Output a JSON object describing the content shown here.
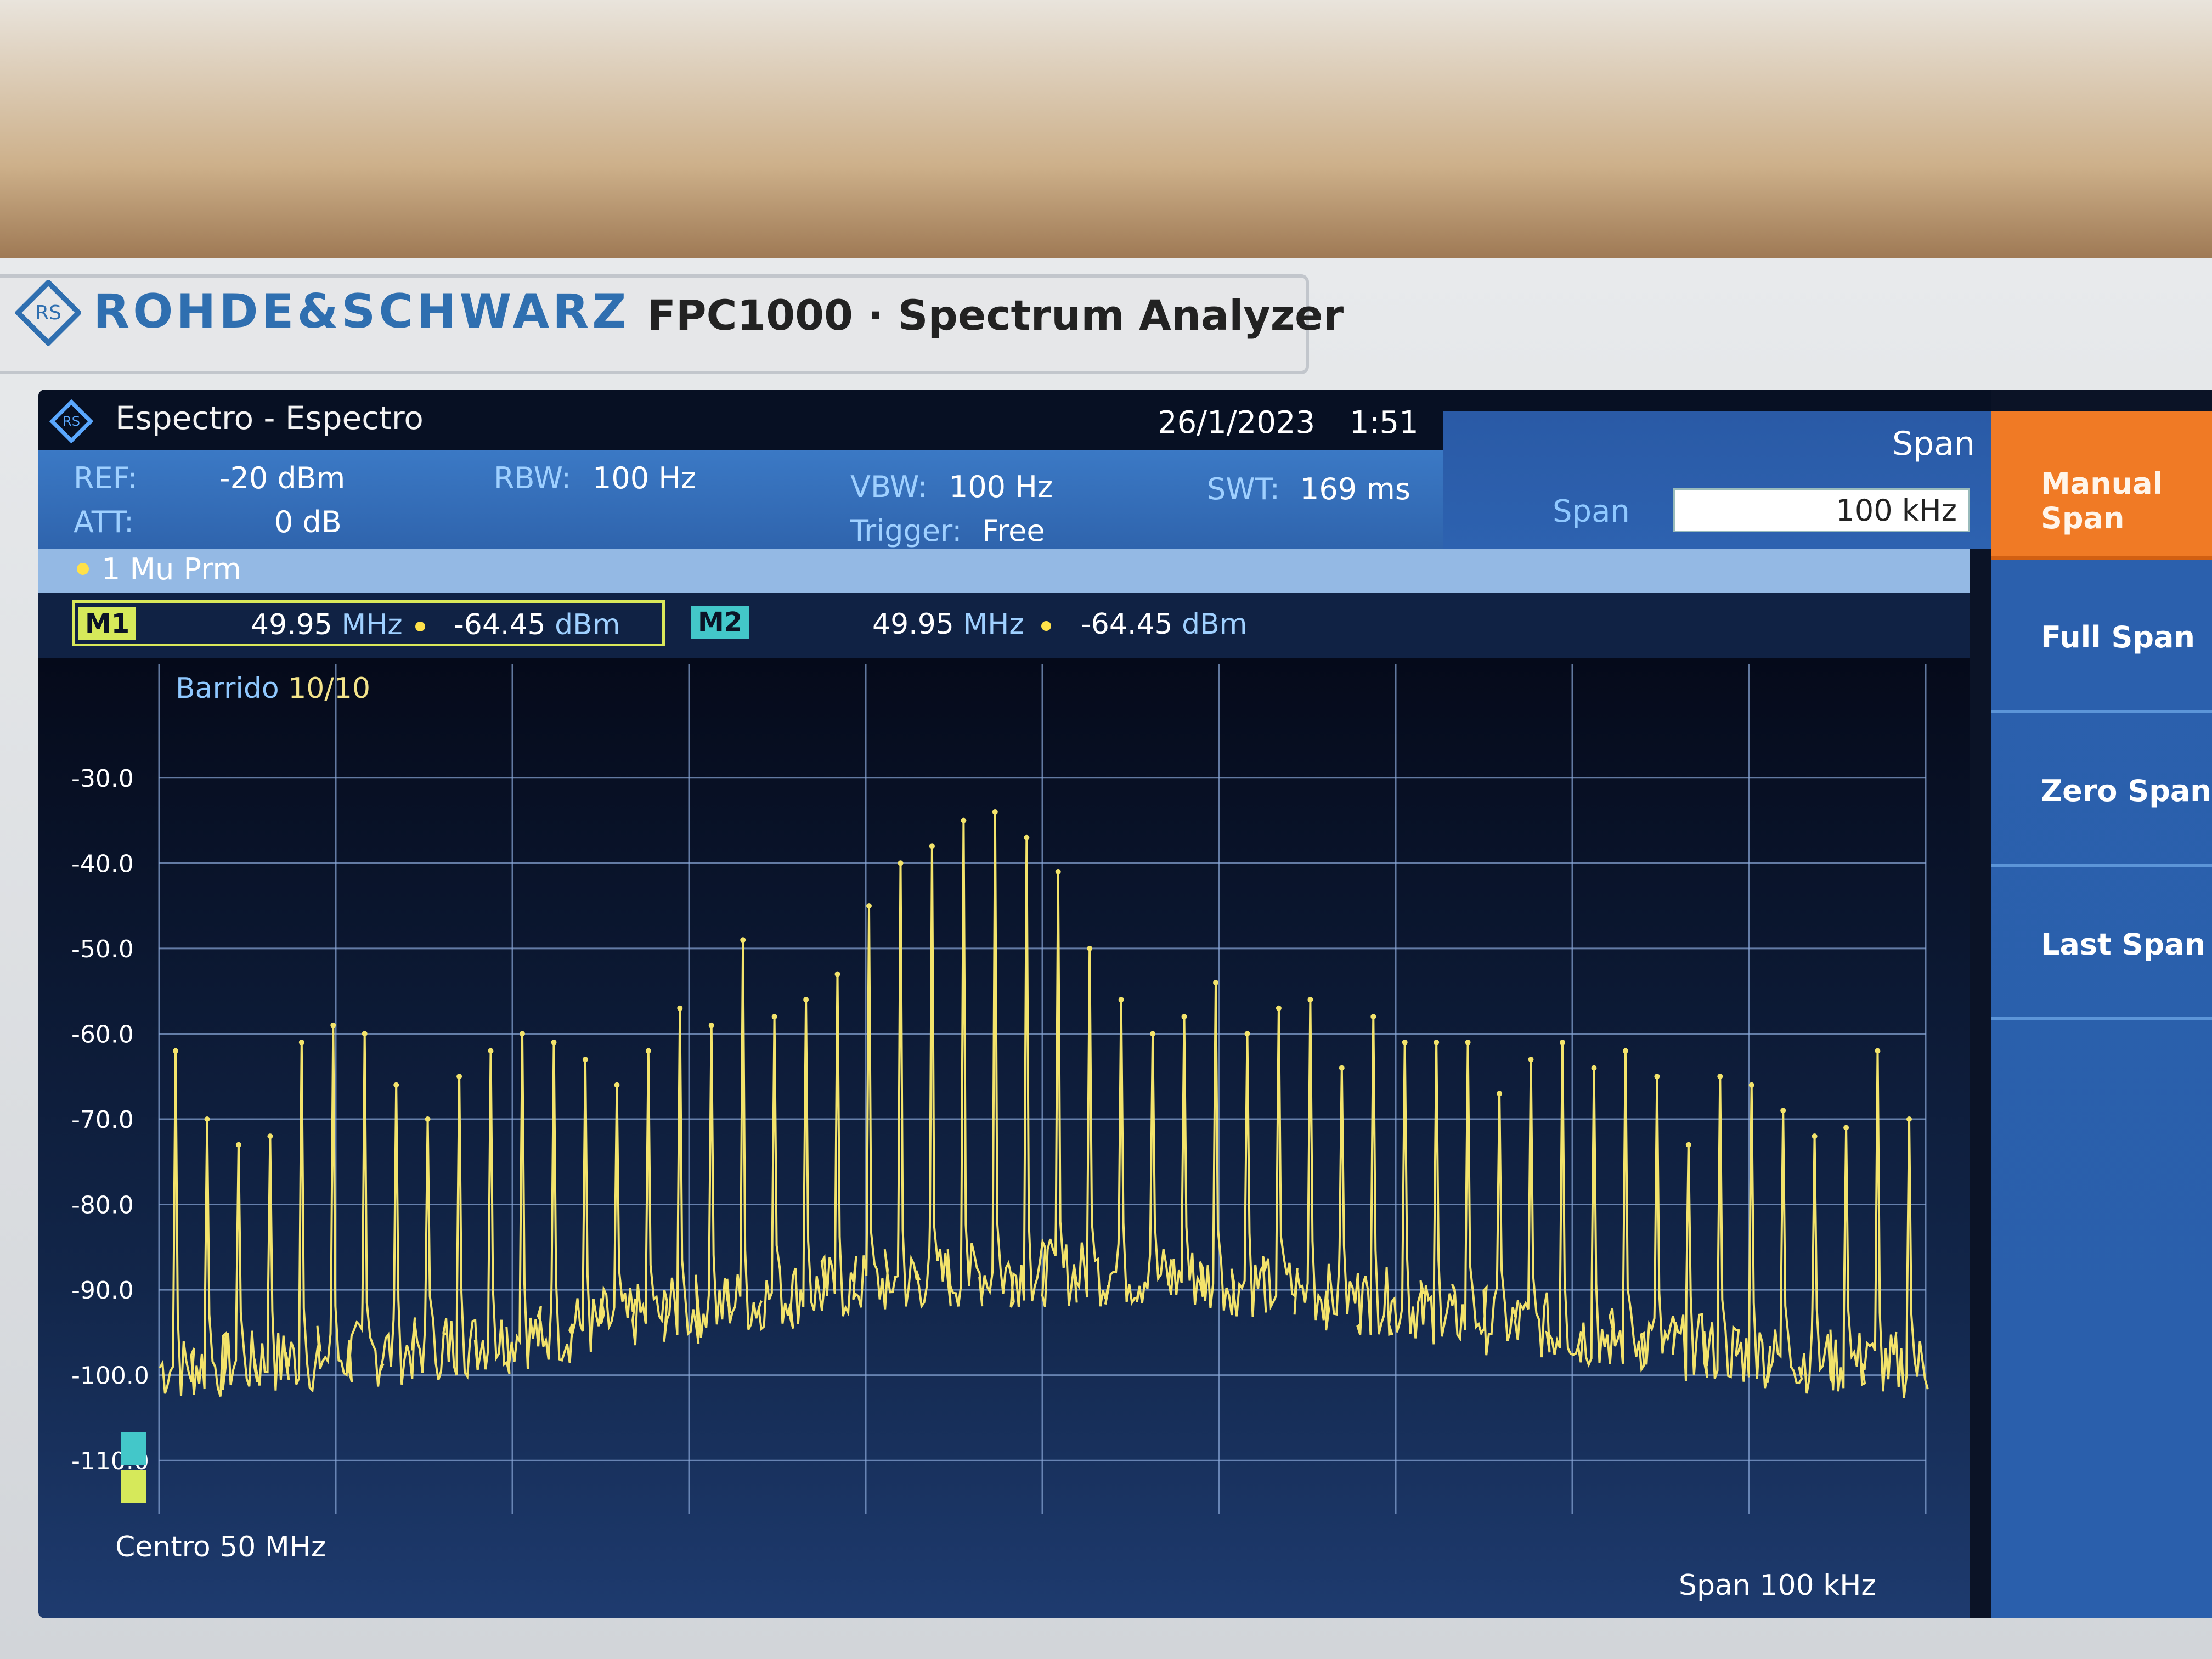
{
  "device": {
    "brand": "ROHDE&SCHWARZ",
    "model": "FPC1000 · Spectrum Analyzer"
  },
  "title_bar": {
    "app_title": "Espectro - Espectro",
    "date": "26/1/2023",
    "time": "1:51"
  },
  "params": {
    "ref_label": "REF:",
    "ref_value": "-20 dBm",
    "att_label": "ATT:",
    "att_value": "0 dB",
    "rbw_label": "RBW:",
    "rbw_value": "100 Hz",
    "vbw_label": "VBW:",
    "vbw_value": "100 Hz",
    "trigger_label": "Trigger:",
    "trigger_value": "Free",
    "swt_label": "SWT:",
    "swt_value": "169 ms"
  },
  "span_panel": {
    "title": "Span",
    "field_label": "Span",
    "field_value": "100 kHz"
  },
  "trace": {
    "label": "1 Mu  Prm"
  },
  "markers": {
    "m1": {
      "tag": "M1",
      "freq": "49.95",
      "freq_unit": "MHz",
      "level": "-64.45",
      "level_unit": "dBm"
    },
    "m2": {
      "tag": "M2",
      "freq": "49.95",
      "freq_unit": "MHz",
      "level": "-64.45",
      "level_unit": "dBm"
    }
  },
  "plot": {
    "sweep_label": "Barrido",
    "sweep_count": "10/10",
    "center": "Centro 50 MHz",
    "span": "Span 100 kHz",
    "trace_color": "#f3e36b"
  },
  "softkeys": [
    {
      "label": "Manual Span",
      "active": true
    },
    {
      "label": "Full Span",
      "active": false
    },
    {
      "label": "Zero Span",
      "active": false
    },
    {
      "label": "Last Span",
      "active": false
    }
  ],
  "chart_data": {
    "type": "line",
    "title": "",
    "xlabel": "",
    "ylabel": "",
    "center_frequency": "50 MHz",
    "span": "100 kHz",
    "y_tick_labels": [
      "-30.0",
      "-40.0",
      "-50.0",
      "-60.0",
      "-70.0",
      "-80.0",
      "-90.0",
      "-100.0",
      "-110.0"
    ],
    "ylim": [
      -115,
      -25
    ],
    "grid": true,
    "series": [
      {
        "values": [
          -62,
          -70,
          -73,
          -72,
          -61,
          -59,
          -60,
          -66,
          -70,
          -65,
          -62,
          -60,
          -61,
          -63,
          -66,
          -62,
          -57,
          -59,
          -49,
          -58,
          -56,
          -53,
          -45,
          -40,
          -38,
          -35,
          -34,
          -37,
          -41,
          -50,
          -56,
          -60,
          -58,
          -54,
          -60,
          -57,
          -56,
          -64,
          -58,
          -61,
          -61,
          -61,
          -67,
          -63,
          -61,
          -64,
          -62,
          -65,
          -73,
          -65,
          -66,
          -69,
          -72,
          -71,
          -62,
          -70
        ]
      }
    ]
  }
}
